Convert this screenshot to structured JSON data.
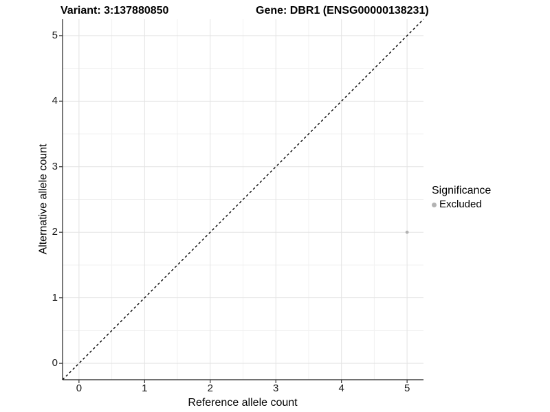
{
  "chart_data": {
    "type": "scatter",
    "title_left": "Variant: 3:137880850",
    "title_right": "Gene: DBR1 (ENSG00000138231)",
    "xlabel": "Reference allele count",
    "ylabel": "Alternative allele count",
    "xlim": [
      -0.25,
      5.25
    ],
    "ylim": [
      -0.25,
      5.25
    ],
    "x_ticks": [
      0,
      1,
      2,
      3,
      4,
      5
    ],
    "y_ticks": [
      0,
      1,
      2,
      3,
      4,
      5
    ],
    "x_minor": [
      0.5,
      1.5,
      2.5,
      3.5,
      4.5
    ],
    "y_minor": [
      0.5,
      1.5,
      2.5,
      3.5,
      4.5
    ],
    "grid": "major+minor",
    "identity_line": {
      "style": "dashed",
      "color": "#000000",
      "from": -0.25,
      "to": 5.25
    },
    "series": [
      {
        "name": "Excluded",
        "color": "#b3b3b3",
        "point_radius": 2.4,
        "points": [
          [
            5,
            2
          ]
        ]
      }
    ],
    "legend": {
      "position": "right",
      "title": "Significance",
      "entries": [
        {
          "label": "Excluded",
          "color": "#b3b3b3"
        }
      ]
    },
    "colors": {
      "background": "#ffffff",
      "grid_major": "#e3e3e3",
      "grid_minor": "#f1f1f1",
      "axis_line": "#1f1f1f",
      "tick_mark": "#333333",
      "text": "#000000"
    }
  }
}
